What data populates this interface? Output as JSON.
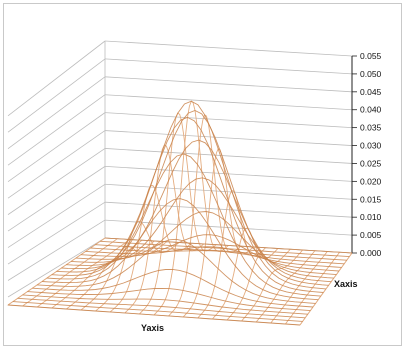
{
  "chart_data": {
    "type": "surface-3d-wireframe",
    "title": "",
    "xlabel": "Yaxis",
    "ylabel": "Xaxis",
    "zlabel": "",
    "zlim": [
      0,
      0.055
    ],
    "z_ticks": [
      "0.000",
      "0.005",
      "0.010",
      "0.015",
      "0.020",
      "0.025",
      "0.030",
      "0.035",
      "0.040",
      "0.045",
      "0.050",
      "0.055"
    ],
    "grid": true,
    "surface": {
      "function": "bivariate-gaussian",
      "peak_z": 0.05,
      "peak_location": "center",
      "grid_size": [
        21,
        21
      ]
    },
    "colors": {
      "mesh": "#e3a97a",
      "mesh_dark": "#c9834a",
      "gridline": "#bdbdbd",
      "frame": "#c9c9c9"
    }
  }
}
